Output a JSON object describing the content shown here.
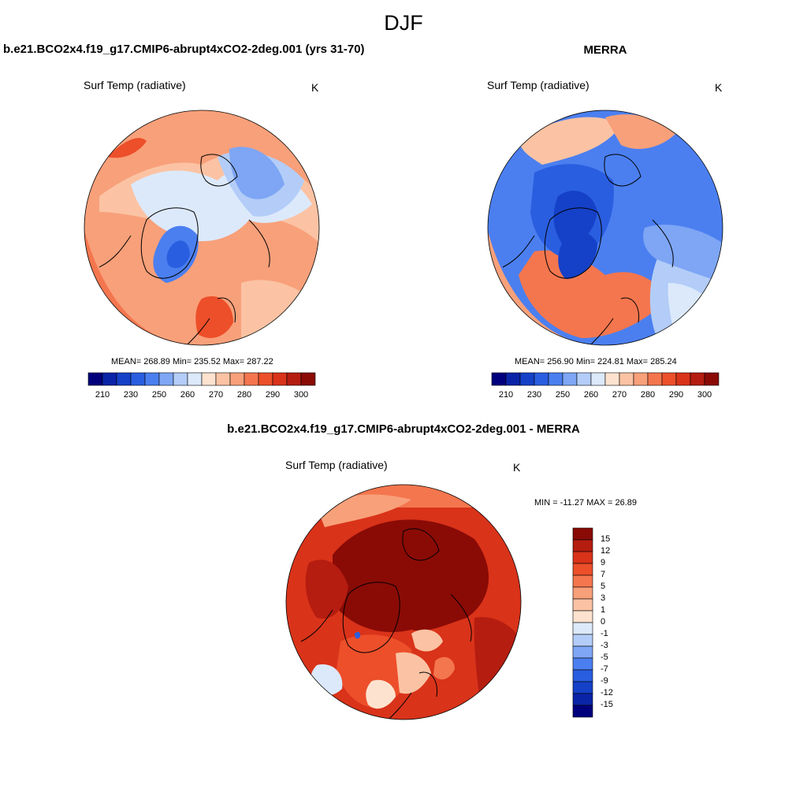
{
  "title": "DJF",
  "panels": [
    {
      "title": "b.e21.BCO2x4.f19_g17.CMIP6-abrupt4xCO2-2deg.001 (yrs 31-70)",
      "variable": "Surf Temp (radiative)",
      "unit": "K",
      "stats": "MEAN= 268.89  Min= 235.52  Max= 287.22"
    },
    {
      "title": "MERRA",
      "variable": "Surf Temp (radiative)",
      "unit": "K",
      "stats": "MEAN= 256.90  Min= 224.81  Max= 285.24"
    },
    {
      "title": "b.e21.BCO2x4.f19_g17.CMIP6-abrupt4xCO2-2deg.001 - MERRA",
      "variable": "Surf Temp (radiative)",
      "unit": "K",
      "stats": "MIN = -11.27 MAX =  26.89"
    }
  ],
  "abs_colorbar": {
    "labels": [
      "210",
      "230",
      "250",
      "260",
      "270",
      "280",
      "290",
      "300"
    ],
    "colors": [
      "#00007d",
      "#0a24a8",
      "#1541c8",
      "#2a5ee0",
      "#4b7ff0",
      "#7ea6f5",
      "#b3cdf8",
      "#dce9fb",
      "#fde3cf",
      "#fbc3a3",
      "#f8a07a",
      "#f4764e",
      "#ec4f2a",
      "#d9331a",
      "#b51d10",
      "#8a0b06"
    ]
  },
  "diff_colorbar": {
    "labels": [
      "15",
      "12",
      "9",
      "7",
      "5",
      "3",
      "1",
      "0",
      "-1",
      "-3",
      "-5",
      "-7",
      "-9",
      "-12",
      "-15"
    ],
    "colors": [
      "#8a0b06",
      "#b51d10",
      "#d9331a",
      "#ec4f2a",
      "#f4764e",
      "#f8a07a",
      "#fbc3a3",
      "#fde3cf",
      "#dce9fb",
      "#b3cdf8",
      "#7ea6f5",
      "#4b7ff0",
      "#2a5ee0",
      "#1541c8",
      "#0a24a8",
      "#00007d"
    ]
  }
}
